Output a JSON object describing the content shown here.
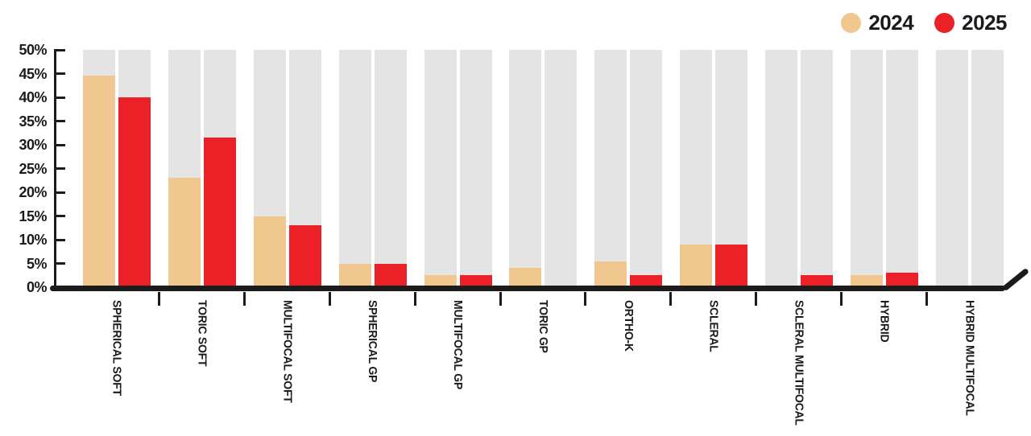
{
  "legend": {
    "items": [
      {
        "label": "2024",
        "color": "#F0C78E"
      },
      {
        "label": "2025",
        "color": "#EB2127"
      }
    ]
  },
  "chart_data": {
    "type": "bar",
    "variant": "grouped",
    "categories": [
      "SPHERICAL SOFT",
      "TORIC SOFT",
      "MULTIFOCAL SOFT",
      "SPHERICAL GP",
      "MULTIFOCAL GP",
      "TORIC GP",
      "ORTHO-K",
      "SCLERAL",
      "SCLERAL MULTIFOCAL",
      "HYBRID",
      "HYBRID MULTIFOCAL"
    ],
    "series": [
      {
        "name": "2024",
        "color": "#F0C78E",
        "values": [
          44.5,
          23,
          15,
          5,
          2.5,
          4,
          5.5,
          9,
          0,
          2.5,
          0
        ]
      },
      {
        "name": "2025",
        "color": "#EB2127",
        "values": [
          40,
          31.5,
          13,
          5,
          2.5,
          0,
          2.5,
          9,
          2.5,
          3,
          0
        ]
      }
    ],
    "unit": "%",
    "ylim": [
      0,
      50
    ],
    "ytick_step": 5,
    "ytick_labels": [
      "0%",
      "5%",
      "10%",
      "15%",
      "20%",
      "25%",
      "30%",
      "35%",
      "40%",
      "45%",
      "50%"
    ],
    "track_color": "#E4E4E4",
    "track_top": 50,
    "axis_color": "#1B1B1B",
    "grid": false,
    "legend_position": "top-right",
    "title": "",
    "xlabel": "",
    "ylabel": ""
  }
}
